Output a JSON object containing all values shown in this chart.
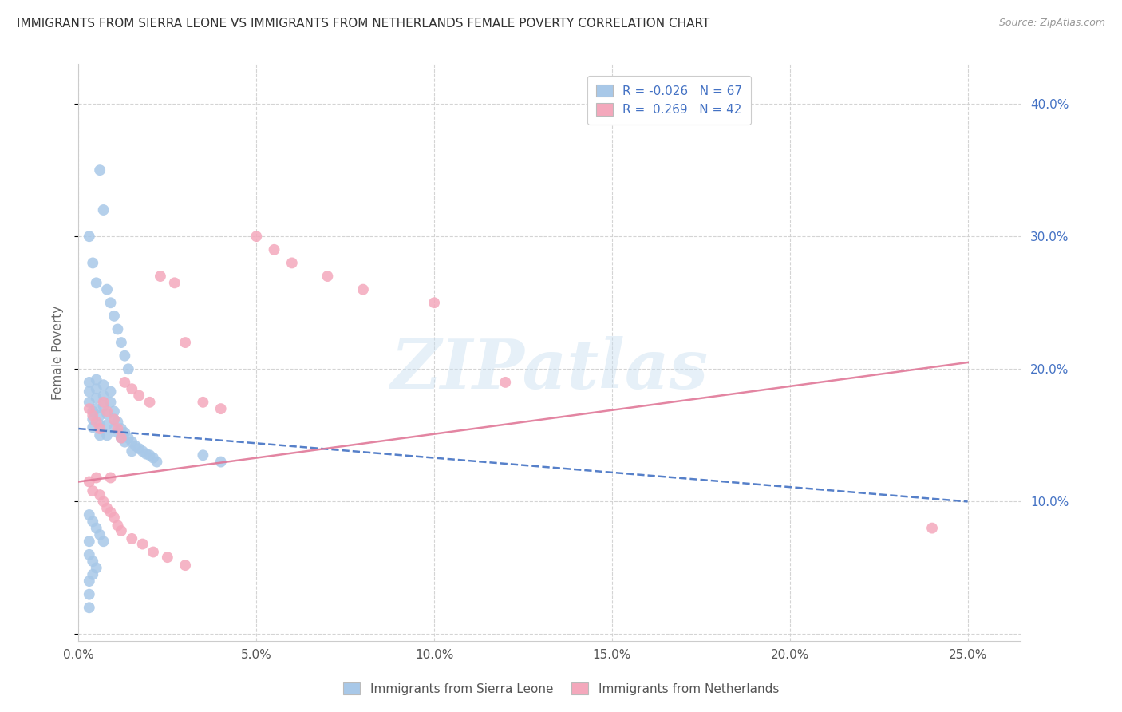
{
  "title": "IMMIGRANTS FROM SIERRA LEONE VS IMMIGRANTS FROM NETHERLANDS FEMALE POVERTY CORRELATION CHART",
  "source": "Source: ZipAtlas.com",
  "ylabel": "Female Poverty",
  "y_ticks": [
    0.0,
    0.1,
    0.2,
    0.3,
    0.4
  ],
  "y_tick_labels_right": [
    "",
    "10.0%",
    "20.0%",
    "30.0%",
    "40.0%"
  ],
  "x_ticks": [
    0.0,
    0.05,
    0.1,
    0.15,
    0.2,
    0.25
  ],
  "x_tick_labels": [
    "0.0%",
    "5.0%",
    "10.0%",
    "15.0%",
    "20.0%",
    "25.0%"
  ],
  "x_range": [
    0.0,
    0.265
  ],
  "y_range": [
    -0.005,
    0.43
  ],
  "sierra_leone_color": "#a8c8e8",
  "netherlands_color": "#f4a8bc",
  "sierra_leone_line_color": "#4472c4",
  "netherlands_line_color": "#e07898",
  "legend_color": "#4472c4",
  "watermark": "ZIPatlas",
  "background_color": "#ffffff",
  "grid_color": "#d0d0d0",
  "sierra_leone_x": [
    0.003,
    0.003,
    0.003,
    0.004,
    0.004,
    0.004,
    0.005,
    0.005,
    0.005,
    0.005,
    0.006,
    0.006,
    0.006,
    0.007,
    0.007,
    0.007,
    0.008,
    0.008,
    0.008,
    0.009,
    0.009,
    0.01,
    0.01,
    0.01,
    0.011,
    0.011,
    0.012,
    0.012,
    0.013,
    0.013,
    0.014,
    0.015,
    0.015,
    0.016,
    0.017,
    0.018,
    0.019,
    0.02,
    0.021,
    0.022,
    0.003,
    0.004,
    0.005,
    0.006,
    0.007,
    0.008,
    0.009,
    0.01,
    0.011,
    0.012,
    0.013,
    0.014,
    0.003,
    0.004,
    0.005,
    0.006,
    0.007,
    0.003,
    0.004,
    0.005,
    0.003,
    0.004,
    0.003,
    0.003,
    0.003,
    0.035,
    0.04
  ],
  "sierra_leone_y": [
    0.19,
    0.183,
    0.175,
    0.168,
    0.162,
    0.156,
    0.192,
    0.185,
    0.178,
    0.17,
    0.165,
    0.158,
    0.15,
    0.188,
    0.18,
    0.172,
    0.166,
    0.158,
    0.15,
    0.183,
    0.175,
    0.168,
    0.162,
    0.155,
    0.16,
    0.152,
    0.155,
    0.148,
    0.152,
    0.145,
    0.148,
    0.145,
    0.138,
    0.142,
    0.14,
    0.138,
    0.136,
    0.135,
    0.133,
    0.13,
    0.3,
    0.28,
    0.265,
    0.35,
    0.32,
    0.26,
    0.25,
    0.24,
    0.23,
    0.22,
    0.21,
    0.2,
    0.09,
    0.085,
    0.08,
    0.075,
    0.07,
    0.06,
    0.055,
    0.05,
    0.04,
    0.045,
    0.03,
    0.07,
    0.02,
    0.135,
    0.13
  ],
  "netherlands_x": [
    0.003,
    0.004,
    0.005,
    0.006,
    0.007,
    0.008,
    0.009,
    0.01,
    0.011,
    0.012,
    0.013,
    0.015,
    0.017,
    0.02,
    0.023,
    0.027,
    0.03,
    0.035,
    0.04,
    0.05,
    0.055,
    0.06,
    0.07,
    0.08,
    0.1,
    0.12,
    0.003,
    0.004,
    0.005,
    0.006,
    0.007,
    0.008,
    0.009,
    0.01,
    0.011,
    0.012,
    0.015,
    0.018,
    0.021,
    0.025,
    0.03,
    0.24
  ],
  "netherlands_y": [
    0.17,
    0.165,
    0.16,
    0.155,
    0.175,
    0.168,
    0.118,
    0.162,
    0.155,
    0.148,
    0.19,
    0.185,
    0.18,
    0.175,
    0.27,
    0.265,
    0.22,
    0.175,
    0.17,
    0.3,
    0.29,
    0.28,
    0.27,
    0.26,
    0.25,
    0.19,
    0.115,
    0.108,
    0.118,
    0.105,
    0.1,
    0.095,
    0.092,
    0.088,
    0.082,
    0.078,
    0.072,
    0.068,
    0.062,
    0.058,
    0.052,
    0.08
  ]
}
